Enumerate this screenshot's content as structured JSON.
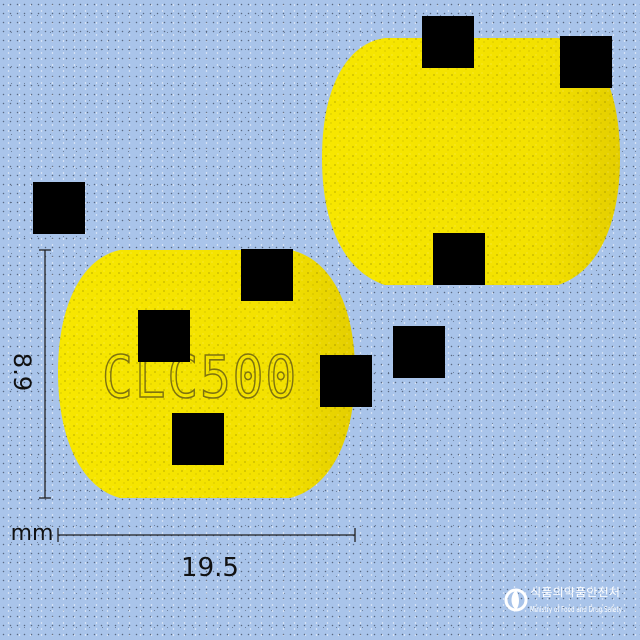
{
  "tablet": {
    "imprint": "CLC500",
    "color": "#f5e400",
    "edge_color": "#e9d300"
  },
  "dimensions": {
    "height_value": "8.9",
    "width_value": "19.5",
    "unit": "mm"
  },
  "logo": {
    "korean_name": "식품의약품안전처",
    "english_name": "Ministry of Food and Drug Safety",
    "icon": "mfds-emblem-icon"
  },
  "redaction_color": "#000000"
}
